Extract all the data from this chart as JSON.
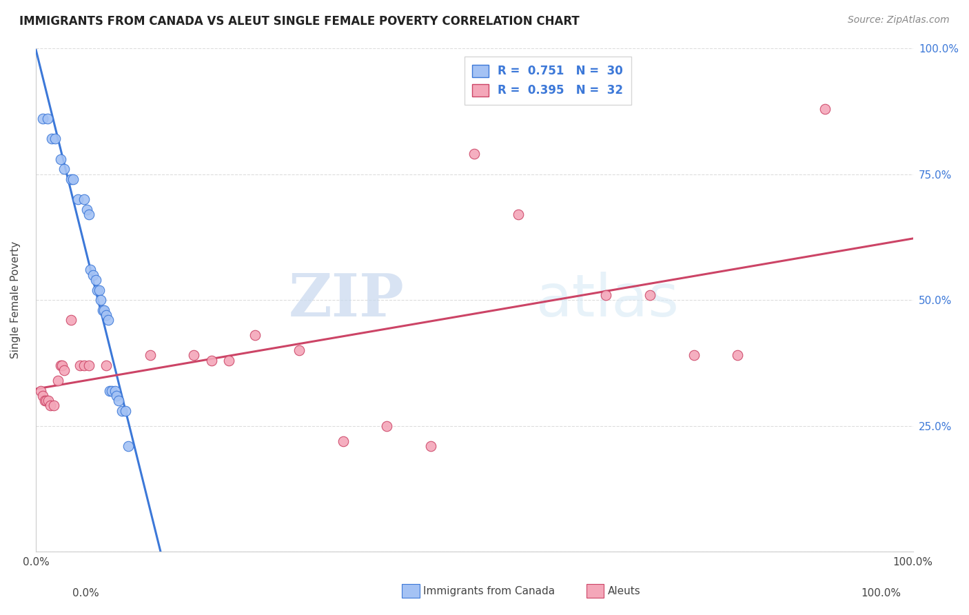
{
  "title": "IMMIGRANTS FROM CANADA VS ALEUT SINGLE FEMALE POVERTY CORRELATION CHART",
  "source": "Source: ZipAtlas.com",
  "ylabel": "Single Female Poverty",
  "legend_label1": "Immigrants from Canada",
  "legend_label2": "Aleuts",
  "legend_R1": "0.751",
  "legend_N1": "30",
  "legend_R2": "0.395",
  "legend_N2": "32",
  "watermark_zip": "ZIP",
  "watermark_atlas": "atlas",
  "blue_color": "#a4c2f4",
  "pink_color": "#f4a7b9",
  "blue_line_color": "#3c78d8",
  "pink_line_color": "#cc4466",
  "blue_scatter": [
    [
      0.8,
      86.0
    ],
    [
      1.3,
      86.0
    ],
    [
      1.8,
      82.0
    ],
    [
      2.2,
      82.0
    ],
    [
      2.8,
      78.0
    ],
    [
      3.2,
      76.0
    ],
    [
      4.0,
      74.0
    ],
    [
      4.2,
      74.0
    ],
    [
      4.8,
      70.0
    ],
    [
      5.5,
      70.0
    ],
    [
      5.8,
      68.0
    ],
    [
      6.0,
      67.0
    ],
    [
      6.2,
      56.0
    ],
    [
      6.5,
      55.0
    ],
    [
      6.8,
      54.0
    ],
    [
      7.0,
      52.0
    ],
    [
      7.2,
      52.0
    ],
    [
      7.4,
      50.0
    ],
    [
      7.6,
      48.0
    ],
    [
      7.8,
      48.0
    ],
    [
      8.0,
      47.0
    ],
    [
      8.2,
      46.0
    ],
    [
      8.4,
      32.0
    ],
    [
      8.6,
      32.0
    ],
    [
      9.0,
      32.0
    ],
    [
      9.2,
      31.0
    ],
    [
      9.4,
      30.0
    ],
    [
      9.8,
      28.0
    ],
    [
      10.2,
      28.0
    ],
    [
      10.5,
      21.0
    ]
  ],
  "pink_scatter": [
    [
      0.5,
      32.0
    ],
    [
      0.8,
      31.0
    ],
    [
      1.0,
      30.0
    ],
    [
      1.2,
      30.0
    ],
    [
      1.4,
      30.0
    ],
    [
      1.6,
      29.0
    ],
    [
      2.0,
      29.0
    ],
    [
      2.5,
      34.0
    ],
    [
      2.8,
      37.0
    ],
    [
      3.0,
      37.0
    ],
    [
      3.2,
      36.0
    ],
    [
      4.0,
      46.0
    ],
    [
      5.0,
      37.0
    ],
    [
      5.5,
      37.0
    ],
    [
      6.0,
      37.0
    ],
    [
      8.0,
      37.0
    ],
    [
      13.0,
      39.0
    ],
    [
      18.0,
      39.0
    ],
    [
      20.0,
      38.0
    ],
    [
      22.0,
      38.0
    ],
    [
      25.0,
      43.0
    ],
    [
      30.0,
      40.0
    ],
    [
      35.0,
      22.0
    ],
    [
      40.0,
      25.0
    ],
    [
      45.0,
      21.0
    ],
    [
      50.0,
      79.0
    ],
    [
      55.0,
      67.0
    ],
    [
      65.0,
      51.0
    ],
    [
      70.0,
      51.0
    ],
    [
      75.0,
      39.0
    ],
    [
      80.0,
      39.0
    ],
    [
      90.0,
      88.0
    ]
  ],
  "xlim": [
    0.0,
    100.0
  ],
  "ylim": [
    0.0,
    100.0
  ],
  "ytick_values": [
    0.0,
    25.0,
    50.0,
    75.0,
    100.0
  ],
  "ytick_labels": [
    "",
    "25.0%",
    "50.0%",
    "75.0%",
    "100.0%"
  ],
  "xtick_values": [
    0.0,
    25.0,
    50.0,
    75.0,
    100.0
  ],
  "background_color": "#ffffff",
  "grid_color": "#dddddd"
}
